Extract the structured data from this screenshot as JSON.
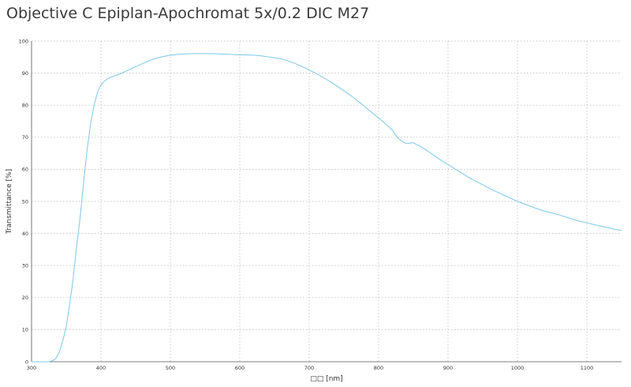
{
  "chart_data": {
    "type": "line",
    "title": "Objective C Epiplan-Apochromat 5x/0.2 DIC M27",
    "xlabel": "□□ [nm]",
    "ylabel": "Transmittance [%]",
    "xlim": [
      300,
      1150
    ],
    "ylim": [
      0,
      100
    ],
    "x_ticks": [
      300,
      400,
      500,
      600,
      700,
      800,
      900,
      1000,
      1100
    ],
    "y_ticks": [
      0,
      10,
      20,
      30,
      40,
      50,
      60,
      70,
      80,
      90,
      100
    ],
    "grid": true,
    "line_color": "#7cc8ea",
    "series": [
      {
        "x": [
          300,
          325,
          330,
          335,
          340,
          345,
          350,
          355,
          360,
          365,
          370,
          375,
          380,
          385,
          390,
          395,
          400,
          405,
          410,
          420,
          430,
          440,
          450,
          460,
          470,
          480,
          490,
          500,
          510,
          520,
          530,
          540,
          550,
          560,
          570,
          580,
          590,
          600,
          610,
          620,
          630,
          640,
          650,
          660,
          670,
          680,
          690,
          700,
          710,
          720,
          730,
          740,
          750,
          760,
          770,
          780,
          790,
          800,
          810,
          820,
          825,
          830,
          835,
          840,
          845,
          850,
          855,
          860,
          870,
          880,
          890,
          900,
          910,
          920,
          930,
          940,
          950,
          960,
          970,
          980,
          990,
          1000,
          1010,
          1020,
          1030,
          1040,
          1050,
          1060,
          1070,
          1080,
          1090,
          1100,
          1110,
          1120,
          1130,
          1140,
          1150
        ],
        "y": [
          0,
          0,
          0.3,
          1,
          3,
          6.5,
          11,
          18,
          26,
          36,
          45,
          56,
          66,
          74,
          80,
          84,
          86.3,
          87.5,
          88.3,
          89.2,
          90,
          91,
          92,
          93,
          93.9,
          94.7,
          95.2,
          95.6,
          95.8,
          96,
          96.1,
          96.1,
          96.1,
          96.1,
          96,
          95.9,
          95.8,
          95.7,
          95.7,
          95.6,
          95.4,
          95.1,
          94.8,
          94.4,
          93.8,
          93,
          92,
          91,
          89.9,
          88.7,
          87.4,
          86,
          84.5,
          83,
          81.3,
          79.6,
          77.8,
          76,
          74.2,
          72.2,
          70.5,
          69.3,
          68.6,
          68,
          68.2,
          68.3,
          67.7,
          67.2,
          65.8,
          64.3,
          62.8,
          61.5,
          60.1,
          58.8,
          57.5,
          56.3,
          55.2,
          54,
          53,
          52,
          51,
          50,
          49.2,
          48.4,
          47.6,
          46.9,
          46.4,
          45.8,
          45.1,
          44.4,
          43.8,
          43.3,
          42.8,
          42.3,
          41.8,
          41.3,
          41
        ]
      }
    ]
  }
}
